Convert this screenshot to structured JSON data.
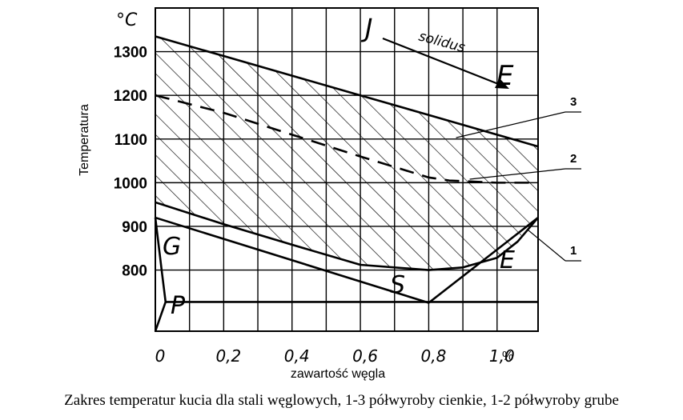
{
  "chart_data": {
    "type": "area",
    "title": "",
    "xlabel": "zawartość węgla",
    "ylabel": "Temperatura",
    "y_unit": "°C",
    "x_unit": "%",
    "xlim": [
      0,
      1.12
    ],
    "ylim": [
      660,
      1400
    ],
    "x_ticks": [
      "0",
      "0,2",
      "0,4",
      "0,6",
      "0,8",
      "1,0"
    ],
    "y_ticks": [
      "800",
      "900",
      "1000",
      "1100",
      "1200",
      "1300"
    ],
    "grid": true,
    "series": [
      {
        "key": "3",
        "style": "solid",
        "x": [
          0,
          0.2,
          0.4,
          0.6,
          0.8,
          1.0,
          1.12
        ],
        "y": [
          1335,
          1290,
          1245,
          1200,
          1155,
          1110,
          1083
        ]
      },
      {
        "key": "2",
        "style": "dashed",
        "x": [
          0,
          0.2,
          0.4,
          0.6,
          0.8,
          0.86,
          1.0,
          1.12
        ],
        "y": [
          1200,
          1160,
          1110,
          1060,
          1012,
          1005,
          1000,
          1000
        ]
      },
      {
        "key": "1",
        "style": "solid",
        "x": [
          0,
          0.2,
          0.4,
          0.6,
          0.8,
          0.9,
          1.0,
          1.06,
          1.12
        ],
        "y": [
          955,
          905,
          858,
          812,
          800,
          806,
          828,
          865,
          920
        ]
      },
      {
        "key": "GS",
        "style": "solid",
        "x": [
          0,
          0.8
        ],
        "y": [
          920,
          725
        ]
      },
      {
        "key": "SE",
        "style": "solid",
        "x": [
          0.8,
          1.12
        ],
        "y": [
          725,
          920
        ]
      },
      {
        "key": "PSK",
        "style": "solid",
        "x": [
          0.03,
          1.12
        ],
        "y": [
          727,
          727
        ]
      },
      {
        "key": "GP",
        "style": "solid",
        "x": [
          0,
          0.02,
          0.03
        ],
        "y": [
          920,
          790,
          727
        ]
      },
      {
        "key": "P-base",
        "style": "solid",
        "x": [
          0,
          0.03
        ],
        "y": [
          660,
          727
        ]
      }
    ],
    "hatched_region": "between 1 and 3",
    "letters": {
      "G": "G",
      "P": "P",
      "S": "S",
      "E": "E",
      "J": "J",
      "E2": "E",
      "solidus": "solidus"
    },
    "callouts": [
      "1",
      "2",
      "3"
    ]
  },
  "caption": "Zakres temperatur kucia dla stali węglowych, 1-3 półwyroby cienkie, 1-2 półwyroby grube"
}
